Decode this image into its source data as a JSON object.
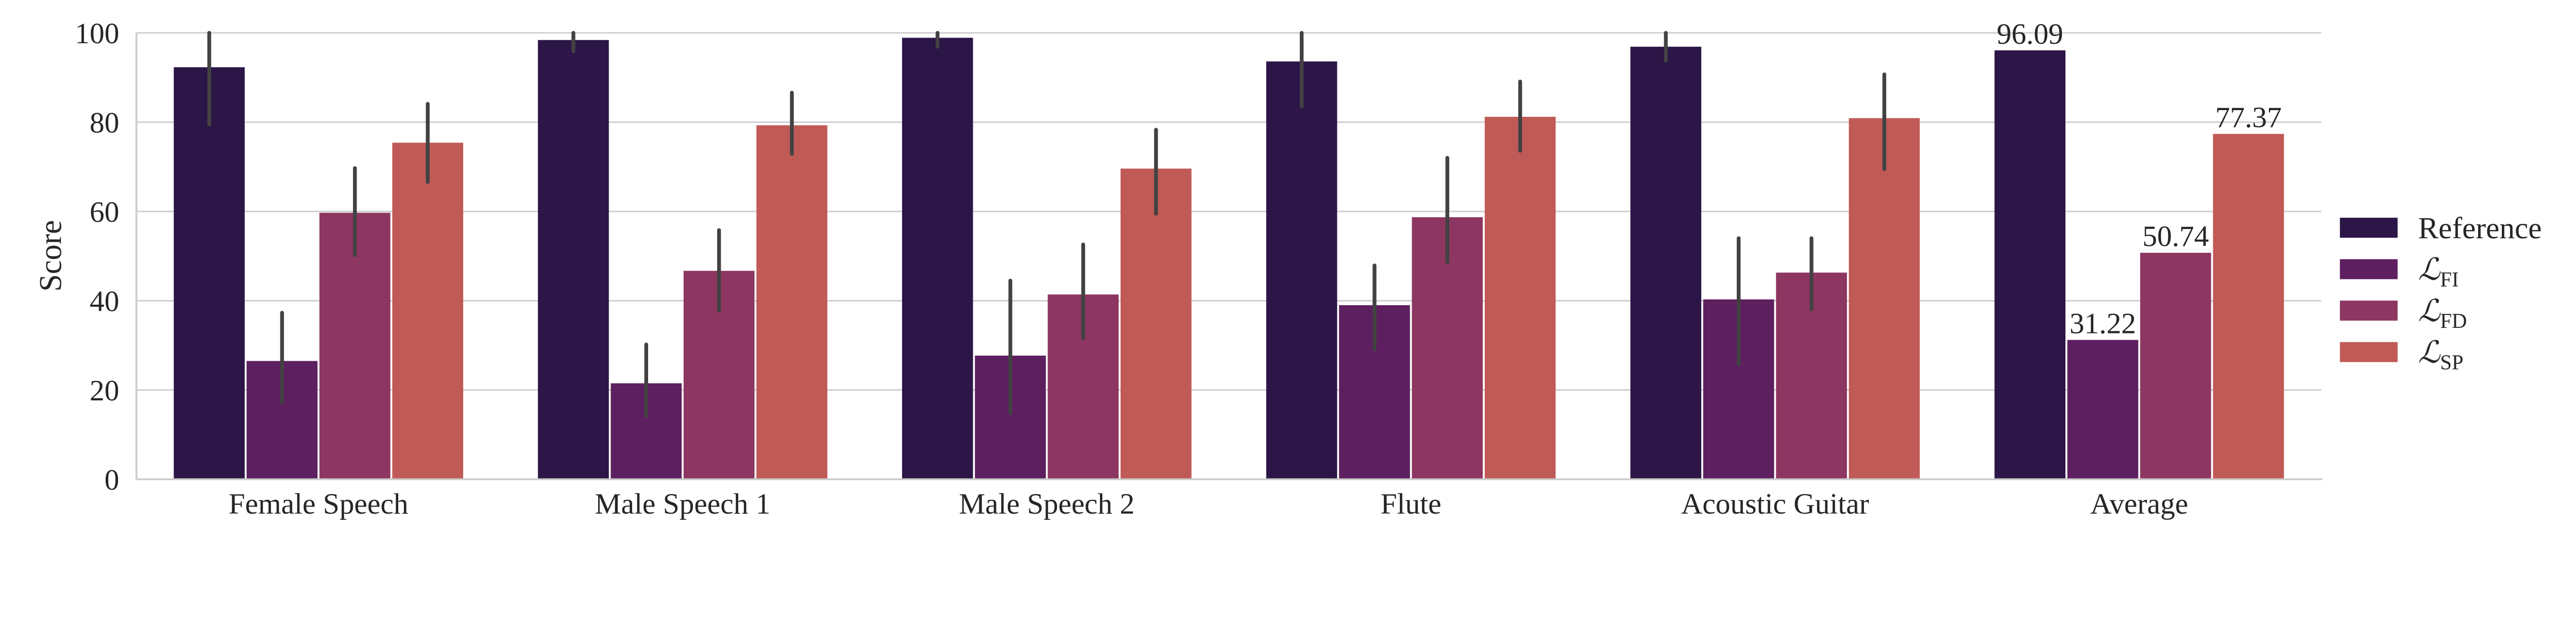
{
  "chart_data": {
    "type": "bar",
    "title": "",
    "xlabel": "",
    "ylabel": "Score",
    "ylim": [
      0,
      100
    ],
    "yticks": [
      "0",
      "20",
      "40",
      "60",
      "80",
      "100"
    ],
    "grid": "horizontal",
    "legend_position": "right",
    "categories": [
      "Female Speech",
      "Male Speech 1",
      "Male Speech 2",
      "Flute",
      "Acoustic Guitar",
      "Average"
    ],
    "series": [
      {
        "name": "Reference",
        "sym": "",
        "sub": "",
        "color": "#2c1547",
        "values": [
          92.3,
          98.4,
          98.9,
          93.6,
          96.9,
          96.09
        ],
        "err_low": [
          79.5,
          95.9,
          96.9,
          83.5,
          93.8,
          null
        ],
        "err_high": [
          100,
          100,
          100,
          100,
          100,
          null
        ]
      },
      {
        "name": "",
        "sym": "ℒ",
        "sub": "FI",
        "color": "#5d1f5f",
        "values": [
          26.5,
          21.5,
          27.7,
          39.0,
          40.3,
          31.22
        ],
        "err_low": [
          17.2,
          14.2,
          14.8,
          29.1,
          25.7,
          null
        ],
        "err_high": [
          37.3,
          30.2,
          44.5,
          47.9,
          54.0,
          null
        ]
      },
      {
        "name": "",
        "sym": "ℒ",
        "sub": "FD",
        "color": "#8e3662",
        "values": [
          59.7,
          46.7,
          41.4,
          58.7,
          46.3,
          50.74
        ],
        "err_low": [
          50.2,
          37.8,
          31.6,
          48.7,
          38.1,
          null
        ],
        "err_high": [
          69.7,
          55.8,
          52.6,
          72.0,
          54.0,
          null
        ]
      },
      {
        "name": "",
        "sym": "ℒ",
        "sub": "SP",
        "color": "#c05a56",
        "values": [
          75.4,
          79.3,
          69.6,
          81.2,
          80.9,
          77.37
        ],
        "err_low": [
          66.6,
          72.9,
          59.5,
          73.6,
          69.5,
          null
        ],
        "err_high": [
          84.1,
          86.6,
          78.3,
          89.1,
          90.7,
          null
        ]
      }
    ],
    "data_labels": {
      "category": "Average",
      "labels": [
        "96.09",
        "31.22",
        "50.74",
        "77.37"
      ]
    }
  }
}
